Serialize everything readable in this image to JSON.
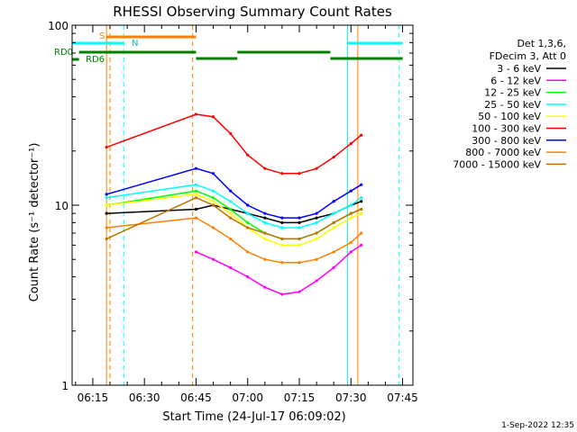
{
  "chart_data": {
    "type": "line",
    "title": "RHESSI Observing Summary Count Rates",
    "xlabel": "Start Time (24-Jul-17 06:09:02)",
    "ylabel": "Count Rate (s⁻¹ detector⁻¹)",
    "yscale": "log",
    "ylim": [
      1,
      100
    ],
    "xlim": [
      "06:09",
      "07:48"
    ],
    "x_ticks": [
      "06:15",
      "06:30",
      "06:45",
      "07:00",
      "07:15",
      "07:30",
      "07:45"
    ],
    "y_ticks": [
      "1",
      "10",
      "100"
    ],
    "footer": "1-Sep-2022 12:35",
    "legend_header": [
      "Det 1,3,6,",
      "FDecim 3, Att 0"
    ],
    "series": [
      {
        "name": "3 - 6 keV",
        "color": "#000000",
        "x": [
          "06:19",
          "06:45",
          "06:50",
          "06:55",
          "07:00",
          "07:05",
          "07:10",
          "07:15",
          "07:20",
          "07:25",
          "07:30",
          "07:33"
        ],
        "y": [
          9,
          9.5,
          10,
          9.5,
          9,
          8.5,
          8,
          8,
          8.5,
          9,
          10,
          10.5
        ]
      },
      {
        "name": "6 - 12 keV",
        "color": "#ff00ff",
        "x": [
          "06:45",
          "06:50",
          "06:55",
          "07:00",
          "07:05",
          "07:10",
          "07:15",
          "07:20",
          "07:25",
          "07:30",
          "07:33"
        ],
        "y": [
          5.5,
          5,
          4.5,
          4,
          3.5,
          3.2,
          3.3,
          3.8,
          4.5,
          5.5,
          6
        ]
      },
      {
        "name": "12 - 25 keV",
        "color": "#00ff00",
        "x": [
          "06:19",
          "06:45",
          "06:50",
          "06:55",
          "07:00",
          "07:05",
          "07:10",
          "07:15",
          "07:20",
          "07:25",
          "07:30",
          "07:33"
        ],
        "y": [
          10,
          12,
          11,
          9.5,
          8,
          7,
          6.5,
          6.5,
          7,
          8,
          9,
          9.5
        ]
      },
      {
        "name": "25 - 50 keV",
        "color": "#00ffff",
        "x": [
          "06:19",
          "06:45",
          "06:50",
          "06:55",
          "07:00",
          "07:05",
          "07:10",
          "07:15",
          "07:20",
          "07:25",
          "07:30",
          "07:33"
        ],
        "y": [
          11,
          13,
          12,
          10.5,
          9,
          8,
          7.5,
          7.5,
          8,
          9,
          10,
          11
        ]
      },
      {
        "name": "50 - 100 keV",
        "color": "#ffff00",
        "x": [
          "06:19",
          "06:45",
          "06:50",
          "06:55",
          "07:00",
          "07:05",
          "07:10",
          "07:15",
          "07:20",
          "07:25",
          "07:30",
          "07:33"
        ],
        "y": [
          10,
          11.5,
          10.5,
          9,
          7.5,
          6.5,
          6,
          6,
          6.5,
          7.5,
          8.5,
          9
        ]
      },
      {
        "name": "100 - 300 keV",
        "color": "#ff0000",
        "x": [
          "06:19",
          "06:45",
          "06:50",
          "06:55",
          "07:00",
          "07:05",
          "07:10",
          "07:15",
          "07:20",
          "07:25",
          "07:30",
          "07:33"
        ],
        "y": [
          21,
          32,
          31,
          25,
          19,
          16,
          15,
          15,
          16,
          18.5,
          22,
          24.5
        ]
      },
      {
        "name": "300 - 800 keV",
        "color": "#0000ff",
        "x": [
          "06:19",
          "06:45",
          "06:50",
          "06:55",
          "07:00",
          "07:05",
          "07:10",
          "07:15",
          "07:20",
          "07:25",
          "07:30",
          "07:33"
        ],
        "y": [
          11.5,
          16,
          15,
          12,
          10,
          9,
          8.5,
          8.5,
          9,
          10.5,
          12,
          13
        ]
      },
      {
        "name": "800 - 7000 keV",
        "color": "#ff8000",
        "x": [
          "06:19",
          "06:45",
          "06:50",
          "06:55",
          "07:00",
          "07:05",
          "07:10",
          "07:15",
          "07:20",
          "07:25",
          "07:30",
          "07:33"
        ],
        "y": [
          7.5,
          8.5,
          7.5,
          6.5,
          5.5,
          5,
          4.8,
          4.8,
          5,
          5.5,
          6.2,
          7
        ]
      },
      {
        "name": "7000 - 15000 keV",
        "color": "#c07000",
        "x": [
          "06:19",
          "06:45",
          "06:50",
          "06:55",
          "07:00",
          "07:05",
          "07:10",
          "07:15",
          "07:20",
          "07:25",
          "07:30",
          "07:33"
        ],
        "y": [
          6.5,
          11,
          10,
          8.5,
          7.5,
          7,
          6.5,
          6.5,
          7,
          8,
          9,
          9.5
        ]
      }
    ],
    "annotations": {
      "flag_labels": {
        "saa": "S",
        "night": "N",
        "decim0": "RD0",
        "decim6": "RD6"
      },
      "orange_bar": {
        "color": "#ff8000",
        "x": [
          "06:19",
          "06:45"
        ]
      },
      "cyan_bars": {
        "color": "#00ffff",
        "segments": [
          [
            "06:09",
            "06:24"
          ],
          [
            "07:29",
            "07:45"
          ]
        ]
      },
      "green_rd0_bars": {
        "color": "#008000",
        "segments": [
          [
            "06:11",
            "06:45"
          ],
          [
            "06:45",
            "06:57"
          ],
          [
            "06:57",
            "07:24"
          ],
          [
            "07:24",
            "07:45"
          ]
        ]
      },
      "green_rd6_bar": {
        "color": "#008000",
        "x": [
          "06:09",
          "06:11"
        ]
      },
      "vertical_lines": [
        {
          "x": "06:19",
          "color": "#ff8000",
          "dash": false
        },
        {
          "x": "06:20",
          "color": "#ff8000",
          "dash": true
        },
        {
          "x": "06:24",
          "color": "#00ffff",
          "dash": true
        },
        {
          "x": "06:44",
          "color": "#ff8000",
          "dash": true
        },
        {
          "x": "07:29",
          "color": "#00ffff",
          "dash": false
        },
        {
          "x": "07:32",
          "color": "#ff8000",
          "dash": false
        },
        {
          "x": "07:44",
          "color": "#00ffff",
          "dash": true
        }
      ]
    }
  }
}
